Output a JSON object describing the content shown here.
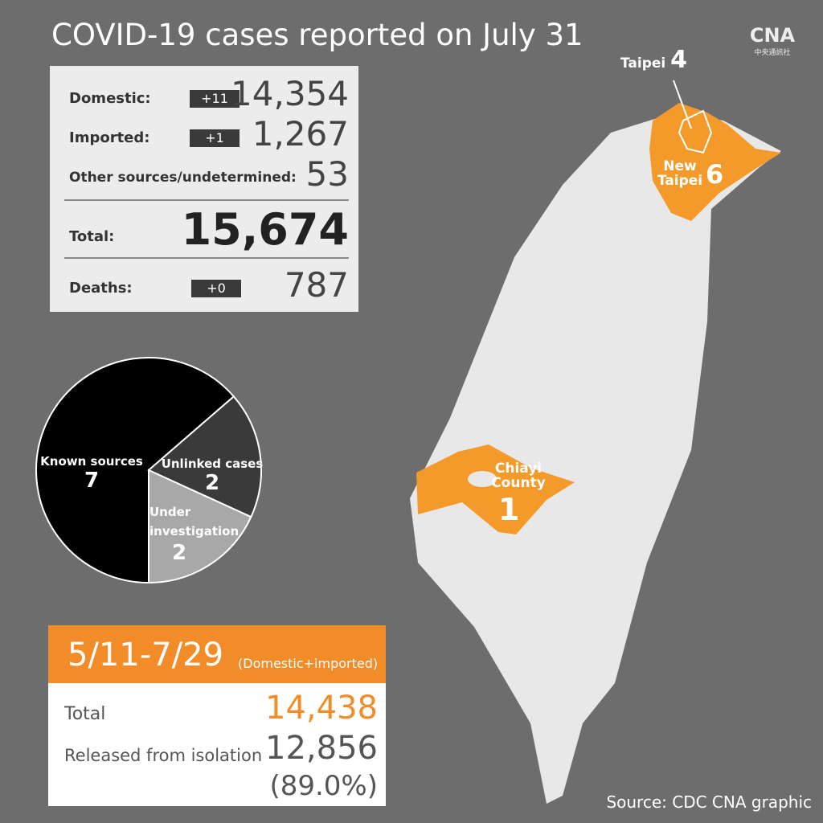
{
  "title": "COVID-19 cases reported on July 31",
  "logo": {
    "text": "CNA",
    "subtext": "中央通訊社"
  },
  "summary": {
    "rows": [
      {
        "label": "Domestic:",
        "change": "+11",
        "value": "14,354"
      },
      {
        "label": "Imported:",
        "change": "+1",
        "value": "1,267"
      },
      {
        "label": "Other sources/undetermined:",
        "value": "53"
      }
    ],
    "total": {
      "label": "Total:",
      "value": "15,674"
    },
    "deaths": {
      "label": "Deaths:",
      "change": "+0",
      "value": "787"
    }
  },
  "pie": {
    "type": "pie",
    "slices": [
      {
        "label": "Known sources",
        "value": 7,
        "color": "#000000"
      },
      {
        "label": "Unlinked cases",
        "value": 2,
        "color": "#3a3a3a"
      },
      {
        "label": "Under investigation",
        "value": 2,
        "color": "#a8a8a8"
      }
    ]
  },
  "map": {
    "regions": [
      {
        "name": "Taipei",
        "value": 4
      },
      {
        "name": "New Taipei",
        "value": 6
      },
      {
        "name": "Chiayi County",
        "value": 1
      }
    ]
  },
  "cumulative": {
    "period": "5/11-7/29",
    "note": "(Domestic+imported)",
    "rows": [
      {
        "label": "Total",
        "value": "14,438"
      },
      {
        "label": "Released from isolation",
        "value": "12,856",
        "percent": "(89.0%)"
      }
    ]
  },
  "source": "Source: CDC  CNA graphic"
}
